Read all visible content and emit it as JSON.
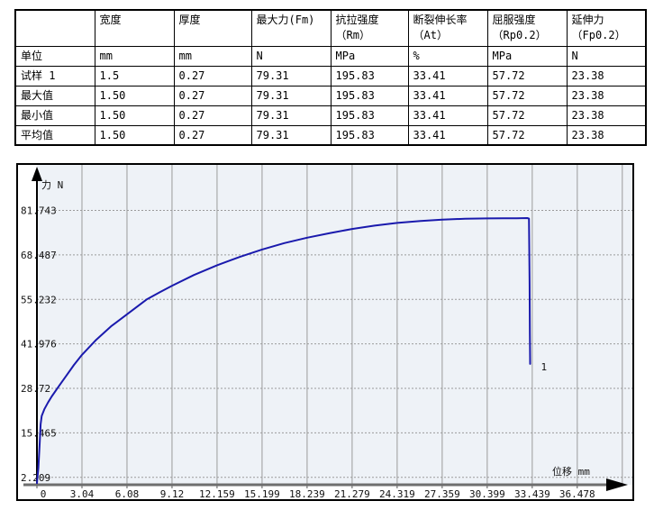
{
  "table": {
    "columns": [
      {
        "line1": "",
        "line2": ""
      },
      {
        "line1": "宽度",
        "line2": ""
      },
      {
        "line1": "厚度",
        "line2": ""
      },
      {
        "line1": "最大力(Fm)",
        "line2": ""
      },
      {
        "line1": "抗拉强度",
        "line2": "（Rm）"
      },
      {
        "line1": "断裂伸长率",
        "line2": "（At）"
      },
      {
        "line1": "屈服强度",
        "line2": "（Rp0.2）"
      },
      {
        "line1": "延伸力",
        "line2": "（Fp0.2）"
      }
    ],
    "rows": [
      {
        "label": "单位",
        "values": [
          "mm",
          "mm",
          "N",
          "MPa",
          "%",
          "MPa",
          "N"
        ]
      },
      {
        "label": "试样 1",
        "values": [
          "1.5",
          "0.27",
          "79.31",
          "195.83",
          "33.41",
          "57.72",
          "23.38"
        ]
      },
      {
        "label": "最大值",
        "values": [
          "1.50",
          "0.27",
          "79.31",
          "195.83",
          "33.41",
          "57.72",
          "23.38"
        ]
      },
      {
        "label": "最小值",
        "values": [
          "1.50",
          "0.27",
          "79.31",
          "195.83",
          "33.41",
          "57.72",
          "23.38"
        ]
      },
      {
        "label": "平均值",
        "values": [
          "1.50",
          "0.27",
          "79.31",
          "195.83",
          "33.41",
          "57.72",
          "23.38"
        ]
      }
    ]
  },
  "chart_data": {
    "type": "line",
    "title": "",
    "xlabel": "位移 mm",
    "ylabel": "力 N",
    "x_ticks": [
      "0",
      "3.04",
      "6.08",
      "9.12",
      "12.159",
      "15.199",
      "18.239",
      "21.279",
      "24.319",
      "27.359",
      "30.399",
      "33.439",
      "36.478"
    ],
    "x_tick_values": [
      0,
      3.04,
      6.08,
      9.12,
      12.159,
      15.199,
      18.239,
      21.279,
      24.319,
      27.359,
      30.399,
      33.439,
      36.478
    ],
    "y_ticks": [
      "2.209",
      "15.465",
      "28.72",
      "41.976",
      "55.232",
      "68.487",
      "81.743"
    ],
    "y_tick_values": [
      2.209,
      15.465,
      28.72,
      41.976,
      55.232,
      68.487,
      81.743
    ],
    "x_grid_step": 3.04,
    "xlim": [
      0,
      40.2
    ],
    "ylim": [
      0,
      95.3
    ],
    "grid": true,
    "legend": "none",
    "colors": {
      "curve": "#1a1aad",
      "plot_bg": "#eef2f7",
      "grid": "#9b9b9b",
      "axis": "#000000",
      "x_axis": "#6e6e6e"
    },
    "series": [
      {
        "name": "1",
        "points": [
          [
            0,
            0.5
          ],
          [
            0.1,
            5
          ],
          [
            0.18,
            12
          ],
          [
            0.25,
            18
          ],
          [
            0.32,
            20.5
          ],
          [
            0.5,
            22.5
          ],
          [
            0.75,
            24.5
          ],
          [
            1.0,
            26.3
          ],
          [
            1.5,
            29.5
          ],
          [
            2.0,
            32.6
          ],
          [
            2.5,
            35.7
          ],
          [
            3.04,
            38.7
          ],
          [
            4.0,
            43.2
          ],
          [
            5.0,
            47.2
          ],
          [
            6.08,
            50.8
          ],
          [
            7.4,
            55.2
          ],
          [
            8.3,
            57.4
          ],
          [
            9.12,
            59.3
          ],
          [
            10.6,
            62.5
          ],
          [
            12.159,
            65.4
          ],
          [
            13.7,
            67.9
          ],
          [
            15.199,
            70.1
          ],
          [
            16.7,
            72.0
          ],
          [
            18.239,
            73.6
          ],
          [
            19.8,
            75.0
          ],
          [
            21.279,
            76.2
          ],
          [
            22.8,
            77.2
          ],
          [
            24.319,
            78.0
          ],
          [
            25.9,
            78.6
          ],
          [
            27.359,
            79.0
          ],
          [
            28.9,
            79.25
          ],
          [
            30.399,
            79.35
          ],
          [
            31.5,
            79.4
          ],
          [
            32.4,
            79.42
          ],
          [
            33.1,
            79.45
          ],
          [
            33.22,
            79.3
          ],
          [
            33.26,
            60
          ],
          [
            33.28,
            45
          ],
          [
            33.3,
            36
          ]
        ]
      }
    ]
  }
}
